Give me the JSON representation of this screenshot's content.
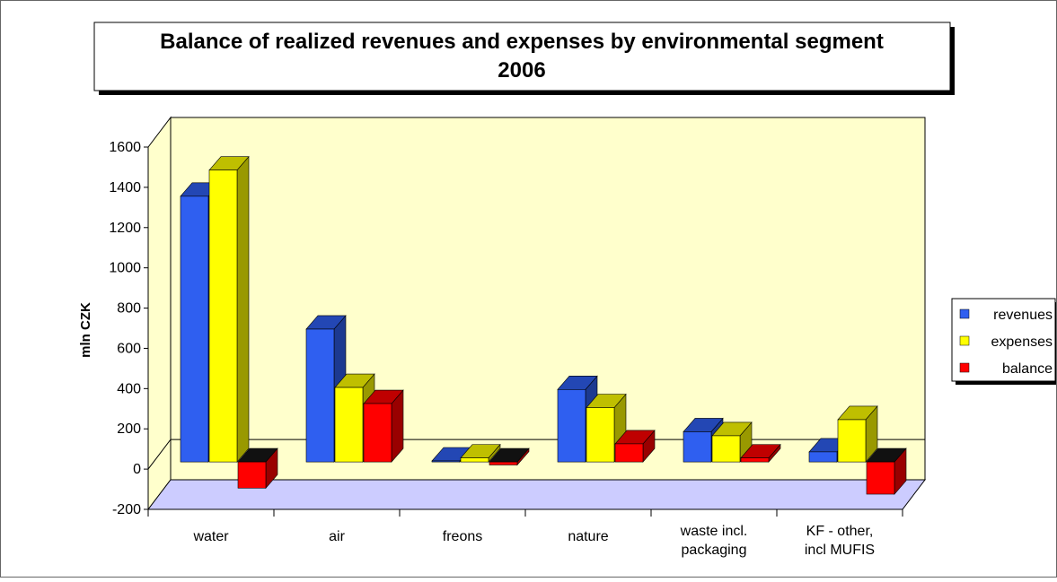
{
  "chart_data": {
    "type": "bar3d",
    "title": "Balance of realized revenues and expenses by environmental segment",
    "subtitle": "2006",
    "y_label": "mln CZK",
    "categories": [
      "water",
      "air",
      "freons",
      "nature",
      "waste incl.\npackaging",
      "KF - other,\nincl MUFIS"
    ],
    "series": [
      {
        "name": "revenues",
        "color": "#2f5ff0",
        "values": [
          1320,
          660,
          5,
          360,
          150,
          50
        ]
      },
      {
        "name": "expenses",
        "color": "#ffff00",
        "values": [
          1450,
          370,
          20,
          270,
          130,
          210
        ]
      },
      {
        "name": "balance",
        "color": "#ff0000",
        "values": [
          -130,
          290,
          -15,
          90,
          20,
          -160
        ]
      }
    ],
    "ylim": [
      -200,
      1600
    ],
    "yticks": [
      -200,
      0,
      200,
      400,
      600,
      800,
      1000,
      1200,
      1400,
      1600
    ],
    "legend": "right"
  }
}
